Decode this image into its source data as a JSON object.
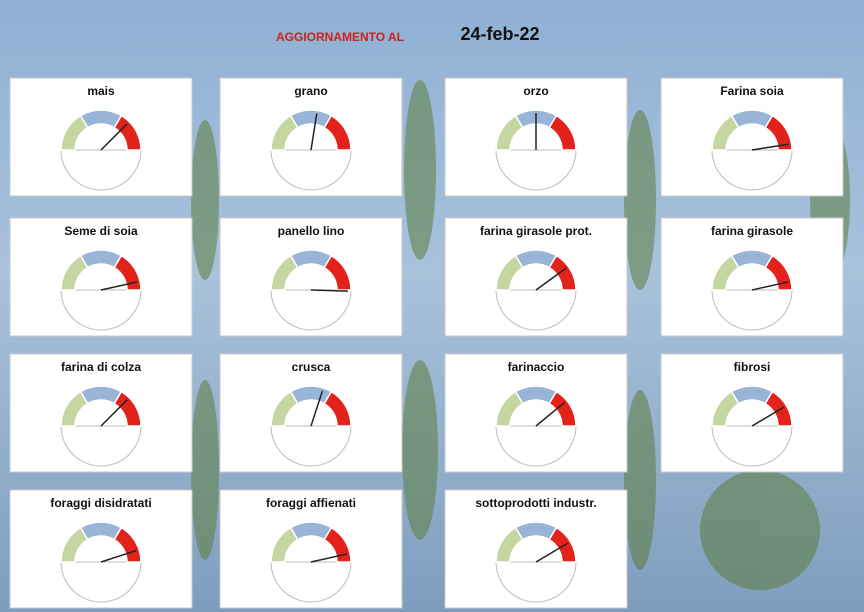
{
  "header": {
    "label": "AGGIORNAMENTO AL",
    "date": "24-feb-22"
  },
  "chart_data": [
    {
      "type": "gauge",
      "title": "mais",
      "value": 75,
      "lim": [
        0,
        100
      ],
      "bands": [
        {
          "from": 0,
          "to": 33,
          "color": "#c5d6a0"
        },
        {
          "from": 33,
          "to": 67,
          "color": "#98b4d6"
        },
        {
          "from": 67,
          "to": 100,
          "color": "#e3221b"
        }
      ]
    },
    {
      "type": "gauge",
      "title": "grano",
      "value": 55,
      "lim": [
        0,
        100
      ],
      "bands": [
        {
          "from": 0,
          "to": 33,
          "color": "#c5d6a0"
        },
        {
          "from": 33,
          "to": 67,
          "color": "#98b4d6"
        },
        {
          "from": 67,
          "to": 100,
          "color": "#e3221b"
        }
      ]
    },
    {
      "type": "gauge",
      "title": "orzo",
      "value": 50,
      "lim": [
        0,
        100
      ],
      "bands": [
        {
          "from": 0,
          "to": 33,
          "color": "#c5d6a0"
        },
        {
          "from": 33,
          "to": 67,
          "color": "#98b4d6"
        },
        {
          "from": 67,
          "to": 100,
          "color": "#e3221b"
        }
      ]
    },
    {
      "type": "gauge",
      "title": "Farina soia",
      "value": 95,
      "lim": [
        0,
        100
      ],
      "bands": [
        {
          "from": 0,
          "to": 33,
          "color": "#c5d6a0"
        },
        {
          "from": 33,
          "to": 67,
          "color": "#98b4d6"
        },
        {
          "from": 67,
          "to": 100,
          "color": "#e3221b"
        }
      ]
    },
    {
      "type": "gauge",
      "title": "Seme di soia",
      "value": 93,
      "lim": [
        0,
        100
      ],
      "bands": [
        {
          "from": 0,
          "to": 33,
          "color": "#c5d6a0"
        },
        {
          "from": 33,
          "to": 67,
          "color": "#98b4d6"
        },
        {
          "from": 67,
          "to": 100,
          "color": "#e3221b"
        }
      ]
    },
    {
      "type": "gauge",
      "title": "panello lino",
      "value": 101,
      "lim": [
        0,
        100
      ],
      "bands": [
        {
          "from": 0,
          "to": 33,
          "color": "#c5d6a0"
        },
        {
          "from": 33,
          "to": 67,
          "color": "#98b4d6"
        },
        {
          "from": 67,
          "to": 100,
          "color": "#e3221b"
        }
      ]
    },
    {
      "type": "gauge",
      "title": "farina girasole prot.",
      "value": 80,
      "lim": [
        0,
        100
      ],
      "bands": [
        {
          "from": 0,
          "to": 33,
          "color": "#c5d6a0"
        },
        {
          "from": 33,
          "to": 67,
          "color": "#98b4d6"
        },
        {
          "from": 67,
          "to": 100,
          "color": "#e3221b"
        }
      ]
    },
    {
      "type": "gauge",
      "title": "farina girasole",
      "value": 93,
      "lim": [
        0,
        100
      ],
      "bands": [
        {
          "from": 0,
          "to": 33,
          "color": "#c5d6a0"
        },
        {
          "from": 33,
          "to": 67,
          "color": "#98b4d6"
        },
        {
          "from": 67,
          "to": 100,
          "color": "#e3221b"
        }
      ]
    },
    {
      "type": "gauge",
      "title": "farina di colza",
      "value": 75,
      "lim": [
        0,
        100
      ],
      "bands": [
        {
          "from": 0,
          "to": 33,
          "color": "#c5d6a0"
        },
        {
          "from": 33,
          "to": 67,
          "color": "#98b4d6"
        },
        {
          "from": 67,
          "to": 100,
          "color": "#e3221b"
        }
      ]
    },
    {
      "type": "gauge",
      "title": "crusca",
      "value": 60,
      "lim": [
        0,
        100
      ],
      "bands": [
        {
          "from": 0,
          "to": 33,
          "color": "#c5d6a0"
        },
        {
          "from": 33,
          "to": 67,
          "color": "#98b4d6"
        },
        {
          "from": 67,
          "to": 100,
          "color": "#e3221b"
        }
      ]
    },
    {
      "type": "gauge",
      "title": "farinaccio",
      "value": 78,
      "lim": [
        0,
        100
      ],
      "bands": [
        {
          "from": 0,
          "to": 33,
          "color": "#c5d6a0"
        },
        {
          "from": 33,
          "to": 67,
          "color": "#98b4d6"
        },
        {
          "from": 67,
          "to": 100,
          "color": "#e3221b"
        }
      ]
    },
    {
      "type": "gauge",
      "title": "fibrosi",
      "value": 83,
      "lim": [
        0,
        100
      ],
      "bands": [
        {
          "from": 0,
          "to": 33,
          "color": "#c5d6a0"
        },
        {
          "from": 33,
          "to": 67,
          "color": "#98b4d6"
        },
        {
          "from": 67,
          "to": 100,
          "color": "#e3221b"
        }
      ]
    },
    {
      "type": "gauge",
      "title": "foraggi disidratati",
      "value": 90,
      "lim": [
        0,
        100
      ],
      "bands": [
        {
          "from": 0,
          "to": 33,
          "color": "#c5d6a0"
        },
        {
          "from": 33,
          "to": 67,
          "color": "#98b4d6"
        },
        {
          "from": 67,
          "to": 100,
          "color": "#e3221b"
        }
      ]
    },
    {
      "type": "gauge",
      "title": "foraggi affienati",
      "value": 93,
      "lim": [
        0,
        100
      ],
      "bands": [
        {
          "from": 0,
          "to": 33,
          "color": "#c5d6a0"
        },
        {
          "from": 33,
          "to": 67,
          "color": "#98b4d6"
        },
        {
          "from": 67,
          "to": 100,
          "color": "#e3221b"
        }
      ]
    },
    {
      "type": "gauge",
      "title": "sottoprodotti industr.",
      "value": 83,
      "lim": [
        0,
        100
      ],
      "bands": [
        {
          "from": 0,
          "to": 33,
          "color": "#c5d6a0"
        },
        {
          "from": 33,
          "to": 67,
          "color": "#98b4d6"
        },
        {
          "from": 67,
          "to": 100,
          "color": "#e3221b"
        }
      ]
    }
  ]
}
